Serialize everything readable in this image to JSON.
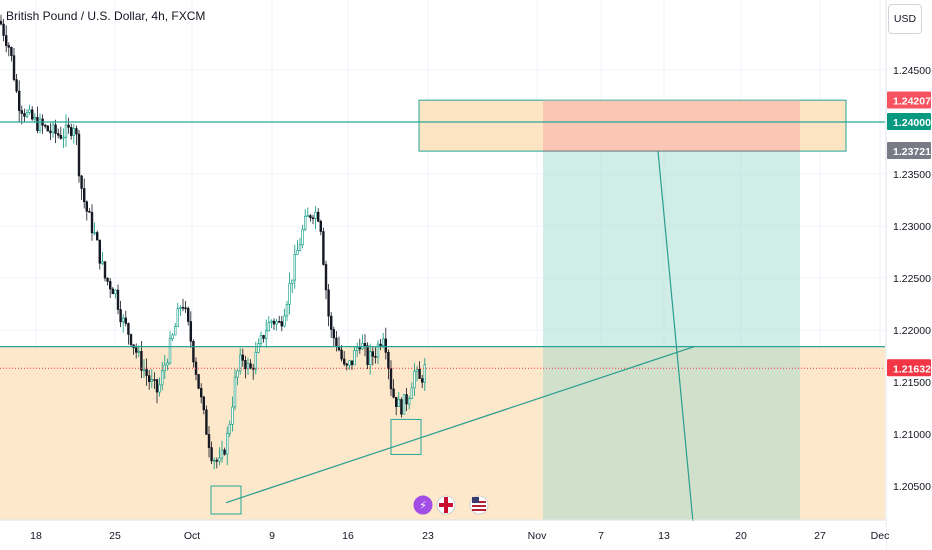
{
  "symbol_title": "British Pound / U.S. Dollar, 4h, FXCM",
  "currency_button": "USD",
  "colors": {
    "up": "#089981",
    "down": "#f23645",
    "zone_fill": "#fde4c2",
    "zone_border": "#26a69a",
    "target_fill": "#cfece7",
    "stop_fill": "#fbc2b2",
    "trendline": "#2a9d8f",
    "current_price": "#f23645",
    "level_tag": "#089981",
    "stop_tag": "#f7525f",
    "entry_tag": "#787b86"
  },
  "chart_data": {
    "type": "candlestick",
    "title": "British Pound / U.S. Dollar, 4h, FXCM",
    "ylim": [
      1.2005,
      1.2525
    ],
    "y_ticks": [
      "1.24500",
      "1.24000",
      "1.23500",
      "1.23000",
      "1.22500",
      "1.22000",
      "1.21500",
      "1.21000",
      "1.20500"
    ],
    "x_ticks": [
      "18",
      "25",
      "Oct",
      "9",
      "16",
      "23",
      "Nov",
      "7",
      "13",
      "20",
      "27",
      "Dec"
    ],
    "price_tags": [
      {
        "label": "1.24207",
        "role": "stop",
        "value": 1.24207
      },
      {
        "label": "1.24000",
        "role": "level",
        "value": 1.24
      },
      {
        "label": "1.23721",
        "role": "entry",
        "value": 1.23721
      },
      {
        "label": "1.21632",
        "role": "current",
        "value": 1.21632
      }
    ],
    "horizontal_levels": [
      1.24,
      1.2184
    ],
    "support_zone": {
      "from": 1.2005,
      "to": 1.2184
    },
    "resistance_zone": {
      "from": 1.2372,
      "to": 1.2421
    },
    "trade_box": {
      "entry": 1.23721,
      "stop": 1.24207,
      "target_zone_bottom": 1.2005
    },
    "icons": [
      "lightning-icon",
      "uk-flag-icon",
      "us-flag-icon"
    ],
    "ohlc_path": [
      [
        0,
        1.2497
      ],
      [
        10,
        1.247
      ],
      [
        18,
        1.242
      ],
      [
        28,
        1.2405
      ],
      [
        38,
        1.2398
      ],
      [
        48,
        1.2392
      ],
      [
        58,
        1.2388
      ],
      [
        68,
        1.239
      ],
      [
        75,
        1.24
      ],
      [
        80,
        1.2345
      ],
      [
        85,
        1.232
      ],
      [
        95,
        1.229
      ],
      [
        105,
        1.225
      ],
      [
        115,
        1.2238
      ],
      [
        122,
        1.221
      ],
      [
        130,
        1.2195
      ],
      [
        140,
        1.217
      ],
      [
        150,
        1.215
      ],
      [
        158,
        1.214
      ],
      [
        165,
        1.2168
      ],
      [
        172,
        1.219
      ],
      [
        182,
        1.223
      ],
      [
        190,
        1.2195
      ],
      [
        198,
        1.215
      ],
      [
        205,
        1.211
      ],
      [
        212,
        1.208
      ],
      [
        220,
        1.207
      ],
      [
        228,
        1.21
      ],
      [
        235,
        1.215
      ],
      [
        242,
        1.2175
      ],
      [
        250,
        1.216
      ],
      [
        258,
        1.218
      ],
      [
        265,
        1.22
      ],
      [
        272,
        1.221
      ],
      [
        280,
        1.2205
      ],
      [
        288,
        1.2235
      ],
      [
        296,
        1.227
      ],
      [
        304,
        1.23
      ],
      [
        312,
        1.2315
      ],
      [
        320,
        1.231
      ],
      [
        325,
        1.225
      ],
      [
        330,
        1.22
      ],
      [
        338,
        1.2185
      ],
      [
        345,
        1.216
      ],
      [
        352,
        1.217
      ],
      [
        360,
        1.219
      ],
      [
        368,
        1.217
      ],
      [
        376,
        1.218
      ],
      [
        384,
        1.22
      ],
      [
        392,
        1.214
      ],
      [
        400,
        1.2125
      ],
      [
        408,
        1.2135
      ],
      [
        414,
        1.216
      ],
      [
        420,
        1.215
      ],
      [
        425,
        1.2163
      ]
    ]
  }
}
